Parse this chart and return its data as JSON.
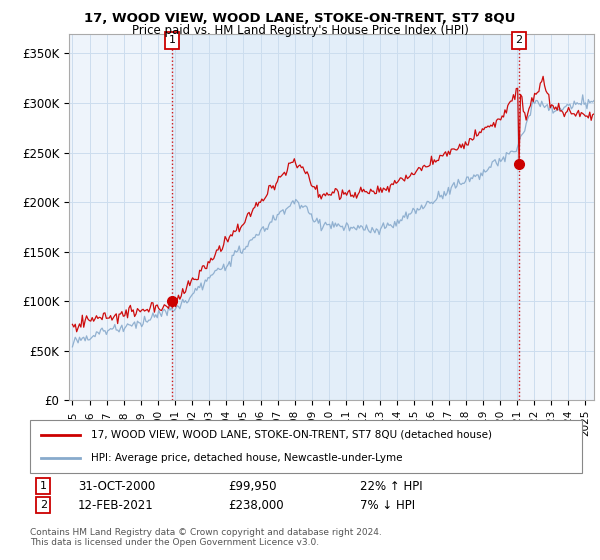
{
  "title": "17, WOOD VIEW, WOOD LANE, STOKE-ON-TRENT, ST7 8QU",
  "subtitle": "Price paid vs. HM Land Registry's House Price Index (HPI)",
  "ylabel_ticks": [
    "£0",
    "£50K",
    "£100K",
    "£150K",
    "£200K",
    "£250K",
    "£300K",
    "£350K"
  ],
  "ytick_values": [
    0,
    50000,
    100000,
    150000,
    200000,
    250000,
    300000,
    350000
  ],
  "ylim": [
    0,
    370000
  ],
  "xlim_start": 1994.8,
  "xlim_end": 2025.5,
  "sale1_x": 2000.83,
  "sale1_y": 99950,
  "sale2_x": 2021.12,
  "sale2_y": 238000,
  "line1_color": "#cc0000",
  "line2_color": "#88aacc",
  "fill_color": "#ddeeff",
  "legend_line1": "17, WOOD VIEW, WOOD LANE, STOKE-ON-TRENT, ST7 8QU (detached house)",
  "legend_line2": "HPI: Average price, detached house, Newcastle-under-Lyme",
  "footer": "Contains HM Land Registry data © Crown copyright and database right 2024.\nThis data is licensed under the Open Government Licence v3.0.",
  "background_color": "#ffffff",
  "plot_bg_color": "#ffffff",
  "grid_color": "#ccddee",
  "vline_color": "#cc0000",
  "ann1_date": "31-OCT-2000",
  "ann1_price": "£99,950",
  "ann1_hpi": "22% ↑ HPI",
  "ann2_date": "12-FEB-2021",
  "ann2_price": "£238,000",
  "ann2_hpi": "7% ↓ HPI"
}
